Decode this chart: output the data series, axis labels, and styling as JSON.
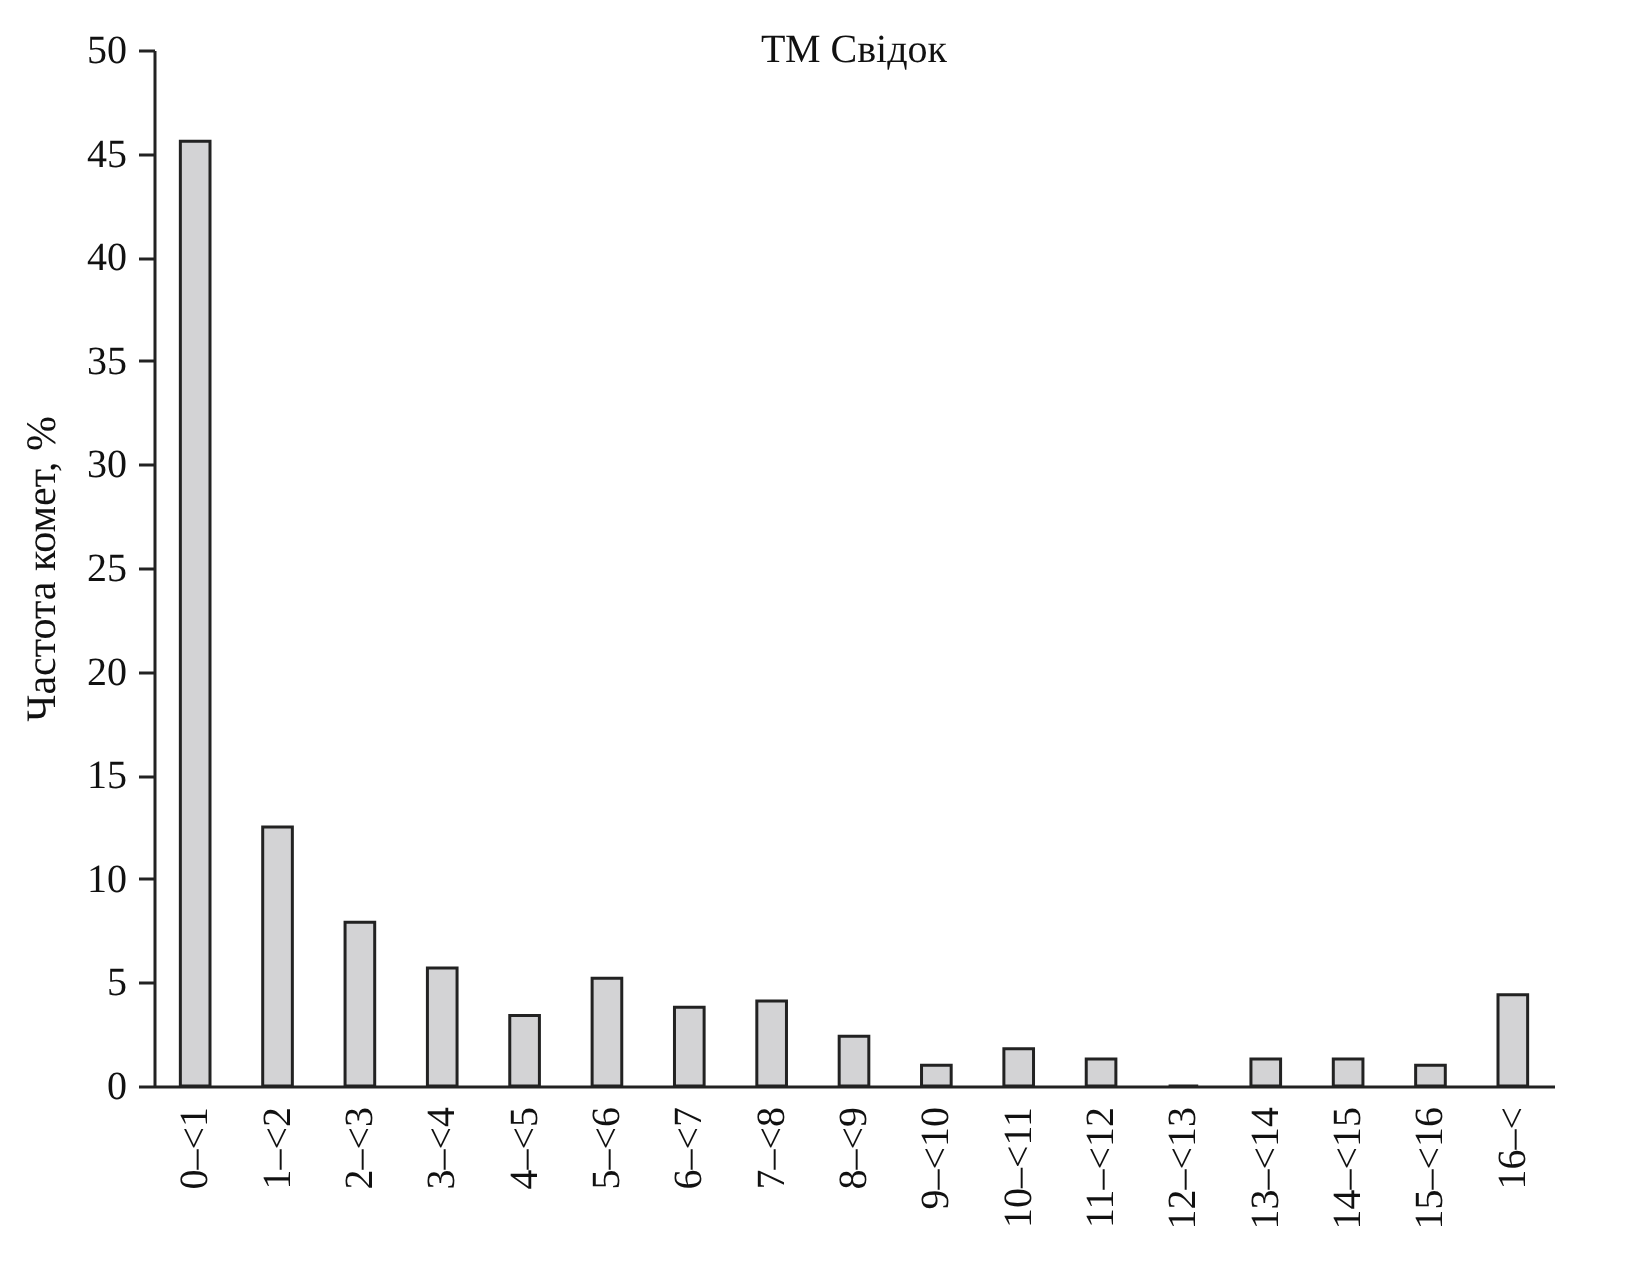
{
  "chart_data": {
    "type": "bar",
    "title": "ТМ Свідок",
    "ylabel": "Частота комет, %",
    "categories": [
      "0–<1",
      "1–<2",
      "2–<3",
      "3–<4",
      "4–<5",
      "5–<6",
      "6–<7",
      "7–<8",
      "8–<9",
      "9–<10",
      "10–<11",
      "11–<12",
      "12–<13",
      "13–<14",
      "14–<15",
      "15–<16",
      "16–<"
    ],
    "values": [
      45.6,
      12.5,
      7.9,
      5.7,
      3.4,
      5.2,
      3.8,
      4.1,
      2.4,
      1.0,
      1.8,
      1.3,
      0,
      1.3,
      1.3,
      1.0,
      4.4
    ],
    "color": "#d3d3d5",
    "ylim": [
      0,
      50
    ],
    "yticks": [
      0,
      5,
      10,
      15,
      20,
      25,
      30,
      35,
      40,
      45,
      50
    ],
    "grid": false
  }
}
